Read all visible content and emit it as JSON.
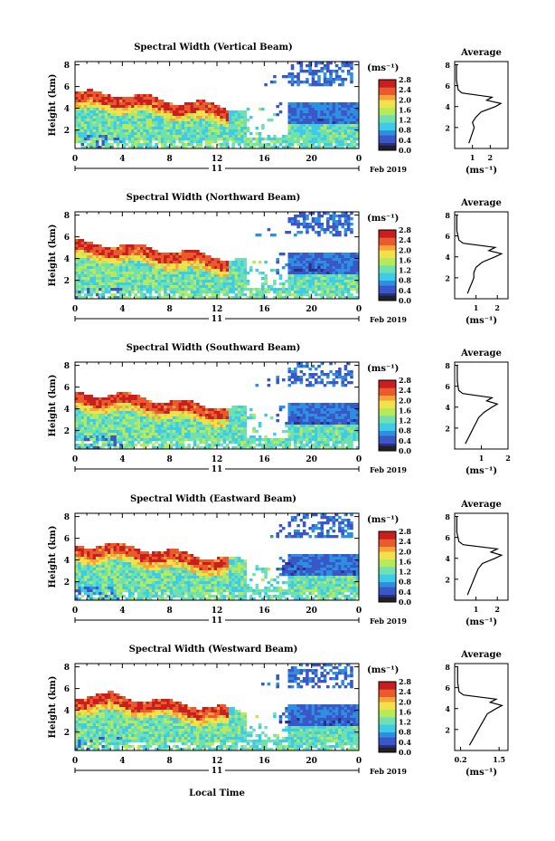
{
  "figure": {
    "x_axis_title": "Local Time",
    "date_label": "Feb 2019",
    "day_label": "11",
    "x_ticks": [
      "0",
      "4",
      "8",
      "12",
      "16",
      "20",
      "0"
    ],
    "y_axis_label": "Height (km)",
    "y_ticks": [
      "2",
      "4",
      "6",
      "8"
    ],
    "colorbar_unit_label": "(ms⁻¹)",
    "colorbar_ticks": [
      "0.0",
      "0.4",
      "0.8",
      "1.2",
      "1.6",
      "2.0",
      "2.4",
      "2.8"
    ],
    "avg_title": "Average",
    "avg_x_label": "(ms⁻¹)",
    "colors": {
      "scale": [
        "#2b2f8e",
        "#3a57c8",
        "#2d8fe0",
        "#3ecbe8",
        "#6fe0b0",
        "#b7ea5a",
        "#f2e24a",
        "#f6a43a",
        "#ea5a2c",
        "#c81e1e"
      ],
      "missing": "#ffffff",
      "lowest": "#222222"
    }
  },
  "chart_data": [
    {
      "type": "heatmap",
      "title": "Spectral Width (Vertical Beam)",
      "avg_x_ticks": [
        "1",
        "2"
      ],
      "avg_xlim": [
        0,
        3
      ],
      "avg_profile": [
        [
          0.8,
          0.5
        ],
        [
          0.9,
          1.0
        ],
        [
          1.0,
          1.5
        ],
        [
          1.1,
          2.0
        ],
        [
          1.0,
          2.5
        ],
        [
          1.2,
          3.0
        ],
        [
          1.5,
          3.5
        ],
        [
          2.3,
          4.0
        ],
        [
          2.6,
          4.3
        ],
        [
          1.8,
          4.6
        ],
        [
          2.1,
          4.9
        ],
        [
          0.4,
          5.3
        ],
        [
          0.2,
          5.6
        ],
        [
          0.1,
          6.5
        ],
        [
          0.1,
          8.0
        ]
      ]
    },
    {
      "type": "heatmap",
      "title": "Spectral Width (Northward Beam)",
      "avg_x_ticks": [
        "1",
        "2"
      ],
      "avg_xlim": [
        0,
        2.5
      ],
      "avg_profile": [
        [
          0.6,
          0.5
        ],
        [
          0.7,
          1.0
        ],
        [
          0.8,
          1.5
        ],
        [
          0.9,
          2.0
        ],
        [
          0.9,
          2.5
        ],
        [
          1.0,
          3.0
        ],
        [
          1.3,
          3.5
        ],
        [
          1.9,
          4.0
        ],
        [
          2.2,
          4.3
        ],
        [
          1.6,
          4.6
        ],
        [
          1.9,
          4.9
        ],
        [
          0.4,
          5.3
        ],
        [
          0.2,
          5.6
        ],
        [
          0.1,
          6.5
        ],
        [
          0.1,
          8.0
        ]
      ]
    },
    {
      "type": "heatmap",
      "title": "Spectral Width (Southward Beam)",
      "avg_x_ticks": [
        "1",
        "2"
      ],
      "avg_xlim": [
        0,
        2
      ],
      "avg_profile": [
        [
          0.4,
          0.5
        ],
        [
          0.5,
          1.0
        ],
        [
          0.6,
          1.5
        ],
        [
          0.7,
          2.0
        ],
        [
          0.8,
          2.5
        ],
        [
          0.9,
          3.0
        ],
        [
          1.1,
          3.5
        ],
        [
          1.4,
          4.0
        ],
        [
          1.6,
          4.3
        ],
        [
          1.2,
          4.6
        ],
        [
          1.4,
          4.9
        ],
        [
          0.3,
          5.3
        ],
        [
          0.15,
          5.6
        ],
        [
          0.1,
          6.5
        ],
        [
          0.1,
          8.0
        ]
      ]
    },
    {
      "type": "heatmap",
      "title": "Spectral Width (Eastward Beam)",
      "avg_x_ticks": [
        "1",
        "2"
      ],
      "avg_xlim": [
        0,
        2.5
      ],
      "avg_profile": [
        [
          0.6,
          0.5
        ],
        [
          0.7,
          1.0
        ],
        [
          0.8,
          1.5
        ],
        [
          0.9,
          2.0
        ],
        [
          1.0,
          2.5
        ],
        [
          1.1,
          3.0
        ],
        [
          1.3,
          3.5
        ],
        [
          1.9,
          4.0
        ],
        [
          2.2,
          4.3
        ],
        [
          1.7,
          4.6
        ],
        [
          2.0,
          4.9
        ],
        [
          0.4,
          5.3
        ],
        [
          0.2,
          5.6
        ],
        [
          0.1,
          6.5
        ],
        [
          0.1,
          8.0
        ]
      ]
    },
    {
      "type": "heatmap",
      "title": "Spectral Width (Westward Beam)",
      "avg_x_ticks": [
        "0.2",
        "1.5"
      ],
      "avg_xlim": [
        0,
        1.8
      ],
      "avg_profile": [
        [
          0.5,
          0.5
        ],
        [
          0.6,
          1.0
        ],
        [
          0.7,
          1.5
        ],
        [
          0.8,
          2.0
        ],
        [
          0.9,
          2.5
        ],
        [
          1.0,
          3.0
        ],
        [
          1.1,
          3.5
        ],
        [
          1.4,
          4.0
        ],
        [
          1.6,
          4.3
        ],
        [
          1.2,
          4.6
        ],
        [
          1.4,
          4.9
        ],
        [
          0.3,
          5.3
        ],
        [
          0.15,
          5.6
        ],
        [
          0.1,
          6.5
        ],
        [
          0.1,
          8.0
        ]
      ]
    }
  ]
}
